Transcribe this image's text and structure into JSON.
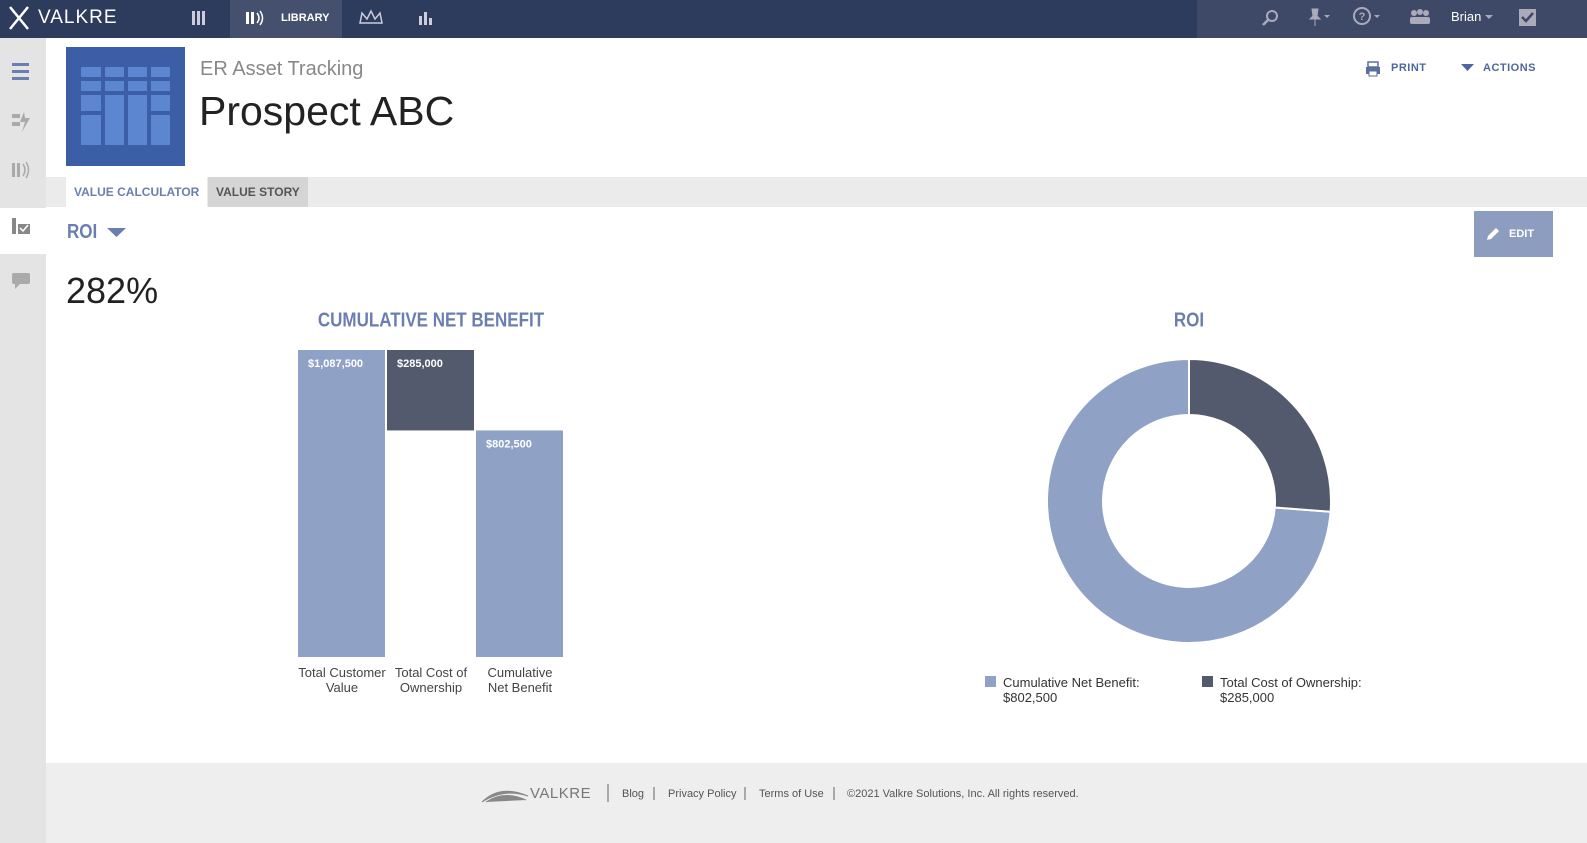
{
  "nav": {
    "brand": "VALKRE",
    "library": "LIBRARY",
    "user": "Brian"
  },
  "header": {
    "subtitle": "ER Asset Tracking",
    "title": "Prospect ABC",
    "print": "PRINT",
    "actions": "ACTIONS"
  },
  "tabs": [
    "VALUE CALCULATOR",
    "VALUE STORY"
  ],
  "metric": {
    "label": "ROI",
    "value": "282%",
    "edit": "EDIT"
  },
  "chart_data": [
    {
      "type": "waterfall",
      "title": "CUMULATIVE NET BENEFIT",
      "categories": [
        "Total Customer Value",
        "Total Cost of Ownership",
        "Cumulative Net Benefit"
      ],
      "values": [
        1087500,
        285000,
        802500
      ],
      "value_labels": [
        "$1,087,500",
        "$285,000",
        "$802,500"
      ],
      "colors": [
        "#8fa2c6",
        "#545a6e",
        "#8fa2c6"
      ]
    },
    {
      "type": "pie",
      "title": "ROI",
      "categories": [
        "Cumulative Net Benefit:",
        "Total Cost of Ownership:"
      ],
      "values": [
        802500,
        285000
      ],
      "value_labels": [
        "$802,500",
        "$285,000"
      ],
      "colors": [
        "#8fa2c6",
        "#545a6e"
      ],
      "donut": true
    }
  ],
  "footer": {
    "brand": "VALKRE",
    "links": [
      "Blog",
      "Privacy Policy",
      "Terms of Use"
    ],
    "copyright": "©2021 Valkre Solutions, Inc. All rights reserved."
  }
}
